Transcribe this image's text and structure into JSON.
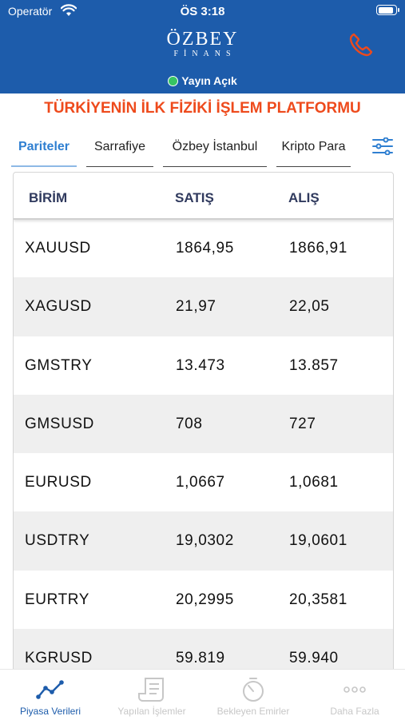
{
  "status": {
    "carrier": "Operatör",
    "time": "ÖS 3:18",
    "battery_level": 0.9
  },
  "header": {
    "logo_main": "ÖZBEY",
    "logo_sub": "FİNANS",
    "live_status": "Yayın Açık",
    "phone_icon": "phone-icon",
    "accent_color": "#1d5cab",
    "phone_color": "#ee4a1c"
  },
  "banner": "TÜRKİYENİN İLK FİZİKİ İŞLEM PLATFORMU",
  "tabs": [
    {
      "label": "Pariteler",
      "active": true
    },
    {
      "label": "Sarrafiye",
      "active": false
    },
    {
      "label": "Özbey İstanbul",
      "active": false
    },
    {
      "label": "Kripto Para",
      "active": false
    }
  ],
  "filter_icon": "sliders-icon",
  "table": {
    "columns": [
      "BİRİM",
      "SATIŞ",
      "ALIŞ"
    ],
    "rows": [
      [
        "XAUUSD",
        "1864,95",
        "1866,91"
      ],
      [
        "XAGUSD",
        "21,97",
        "22,05"
      ],
      [
        "GMSTRY",
        "13.473",
        "13.857"
      ],
      [
        "GMSUSD",
        "708",
        "727"
      ],
      [
        "EURUSD",
        "1,0667",
        "1,0681"
      ],
      [
        "USDTRY",
        "19,0302",
        "19,0601"
      ],
      [
        "EURTRY",
        "20,2995",
        "20,3581"
      ],
      [
        "KGRUSD",
        "59.819",
        "59.940"
      ]
    ]
  },
  "bottom_nav": [
    {
      "label": "Piyasa Verileri",
      "icon": "chart-line-icon",
      "active": true
    },
    {
      "label": "Yapılan İşlemler",
      "icon": "receipt-icon",
      "active": false
    },
    {
      "label": "Bekleyen Emirler",
      "icon": "timer-icon",
      "active": false
    },
    {
      "label": "Daha Fazla",
      "icon": "more-dots-icon",
      "active": false
    }
  ]
}
